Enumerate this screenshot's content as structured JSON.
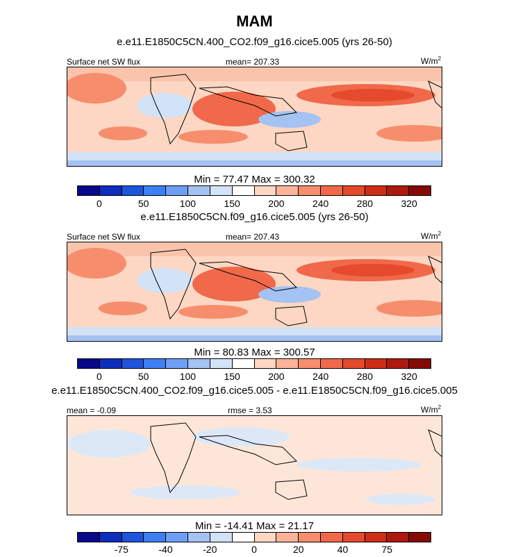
{
  "chart_data": {
    "type": "heatmap",
    "title": "MAM",
    "panels": [
      {
        "title": "e.e11.E1850C5CN.400_CO2.f09_g16.cice5.005 (yrs 26-50)",
        "left_label": "Surface net SW flux",
        "center_label": "mean= 207.33",
        "units": "W/m",
        "units_sup": "2",
        "min_max_label": "Min =  77.47 Max = 300.32",
        "colorbar": {
          "tick_labels": [
            "0",
            "50",
            "100",
            "150",
            "200",
            "240",
            "280",
            "320"
          ],
          "colors": [
            "#08088a",
            "#0d2ebd",
            "#1f55dd",
            "#3f7ff5",
            "#6f9ff5",
            "#a4c2f2",
            "#d2e2f7",
            "#ffffff",
            "#fdd7c3",
            "#fbb39a",
            "#f68e6e",
            "#f0694a",
            "#e54a2c",
            "#d02d17",
            "#ad1a0d",
            "#850a05"
          ]
        },
        "field_range": [
          77.47,
          300.32
        ]
      },
      {
        "title": "e.e11.E1850C5CN.f09_g16.cice5.005 (yrs 26-50)",
        "left_label": "Surface net SW flux",
        "center_label": "mean= 207.43",
        "units": "W/m",
        "units_sup": "2",
        "min_max_label": "Min =  80.83 Max = 300.57",
        "colorbar": {
          "tick_labels": [
            "0",
            "50",
            "100",
            "150",
            "200",
            "240",
            "280",
            "320"
          ],
          "colors": [
            "#08088a",
            "#0d2ebd",
            "#1f55dd",
            "#3f7ff5",
            "#6f9ff5",
            "#a4c2f2",
            "#d2e2f7",
            "#ffffff",
            "#fdd7c3",
            "#fbb39a",
            "#f68e6e",
            "#f0694a",
            "#e54a2c",
            "#d02d17",
            "#ad1a0d",
            "#850a05"
          ]
        },
        "field_range": [
          80.83,
          300.57
        ]
      },
      {
        "title": "e.e11.E1850C5CN.400_CO2.f09_g16.cice5.005 - e.e11.E1850C5CN.f09_g16.cice5.005",
        "left_label": "mean =  -0.09",
        "center_label": "rmse =   3.53",
        "units": "W/m",
        "units_sup": "2",
        "min_max_label": "Min = -14.41 Max =  21.17",
        "colorbar": {
          "tick_labels": [
            "-75",
            "-40",
            "-20",
            "0",
            "20",
            "40",
            "75"
          ],
          "colors": [
            "#08088a",
            "#0d2ebd",
            "#1f55dd",
            "#3f7ff5",
            "#6f9ff5",
            "#a4c2f2",
            "#d2e2f7",
            "#ffffff",
            "#fdd7c3",
            "#fbb39a",
            "#f68e6e",
            "#f0694a",
            "#e54a2c",
            "#d02d17",
            "#ad1a0d",
            "#850a05"
          ]
        },
        "field_range": [
          -14.41,
          21.17
        ]
      }
    ]
  }
}
